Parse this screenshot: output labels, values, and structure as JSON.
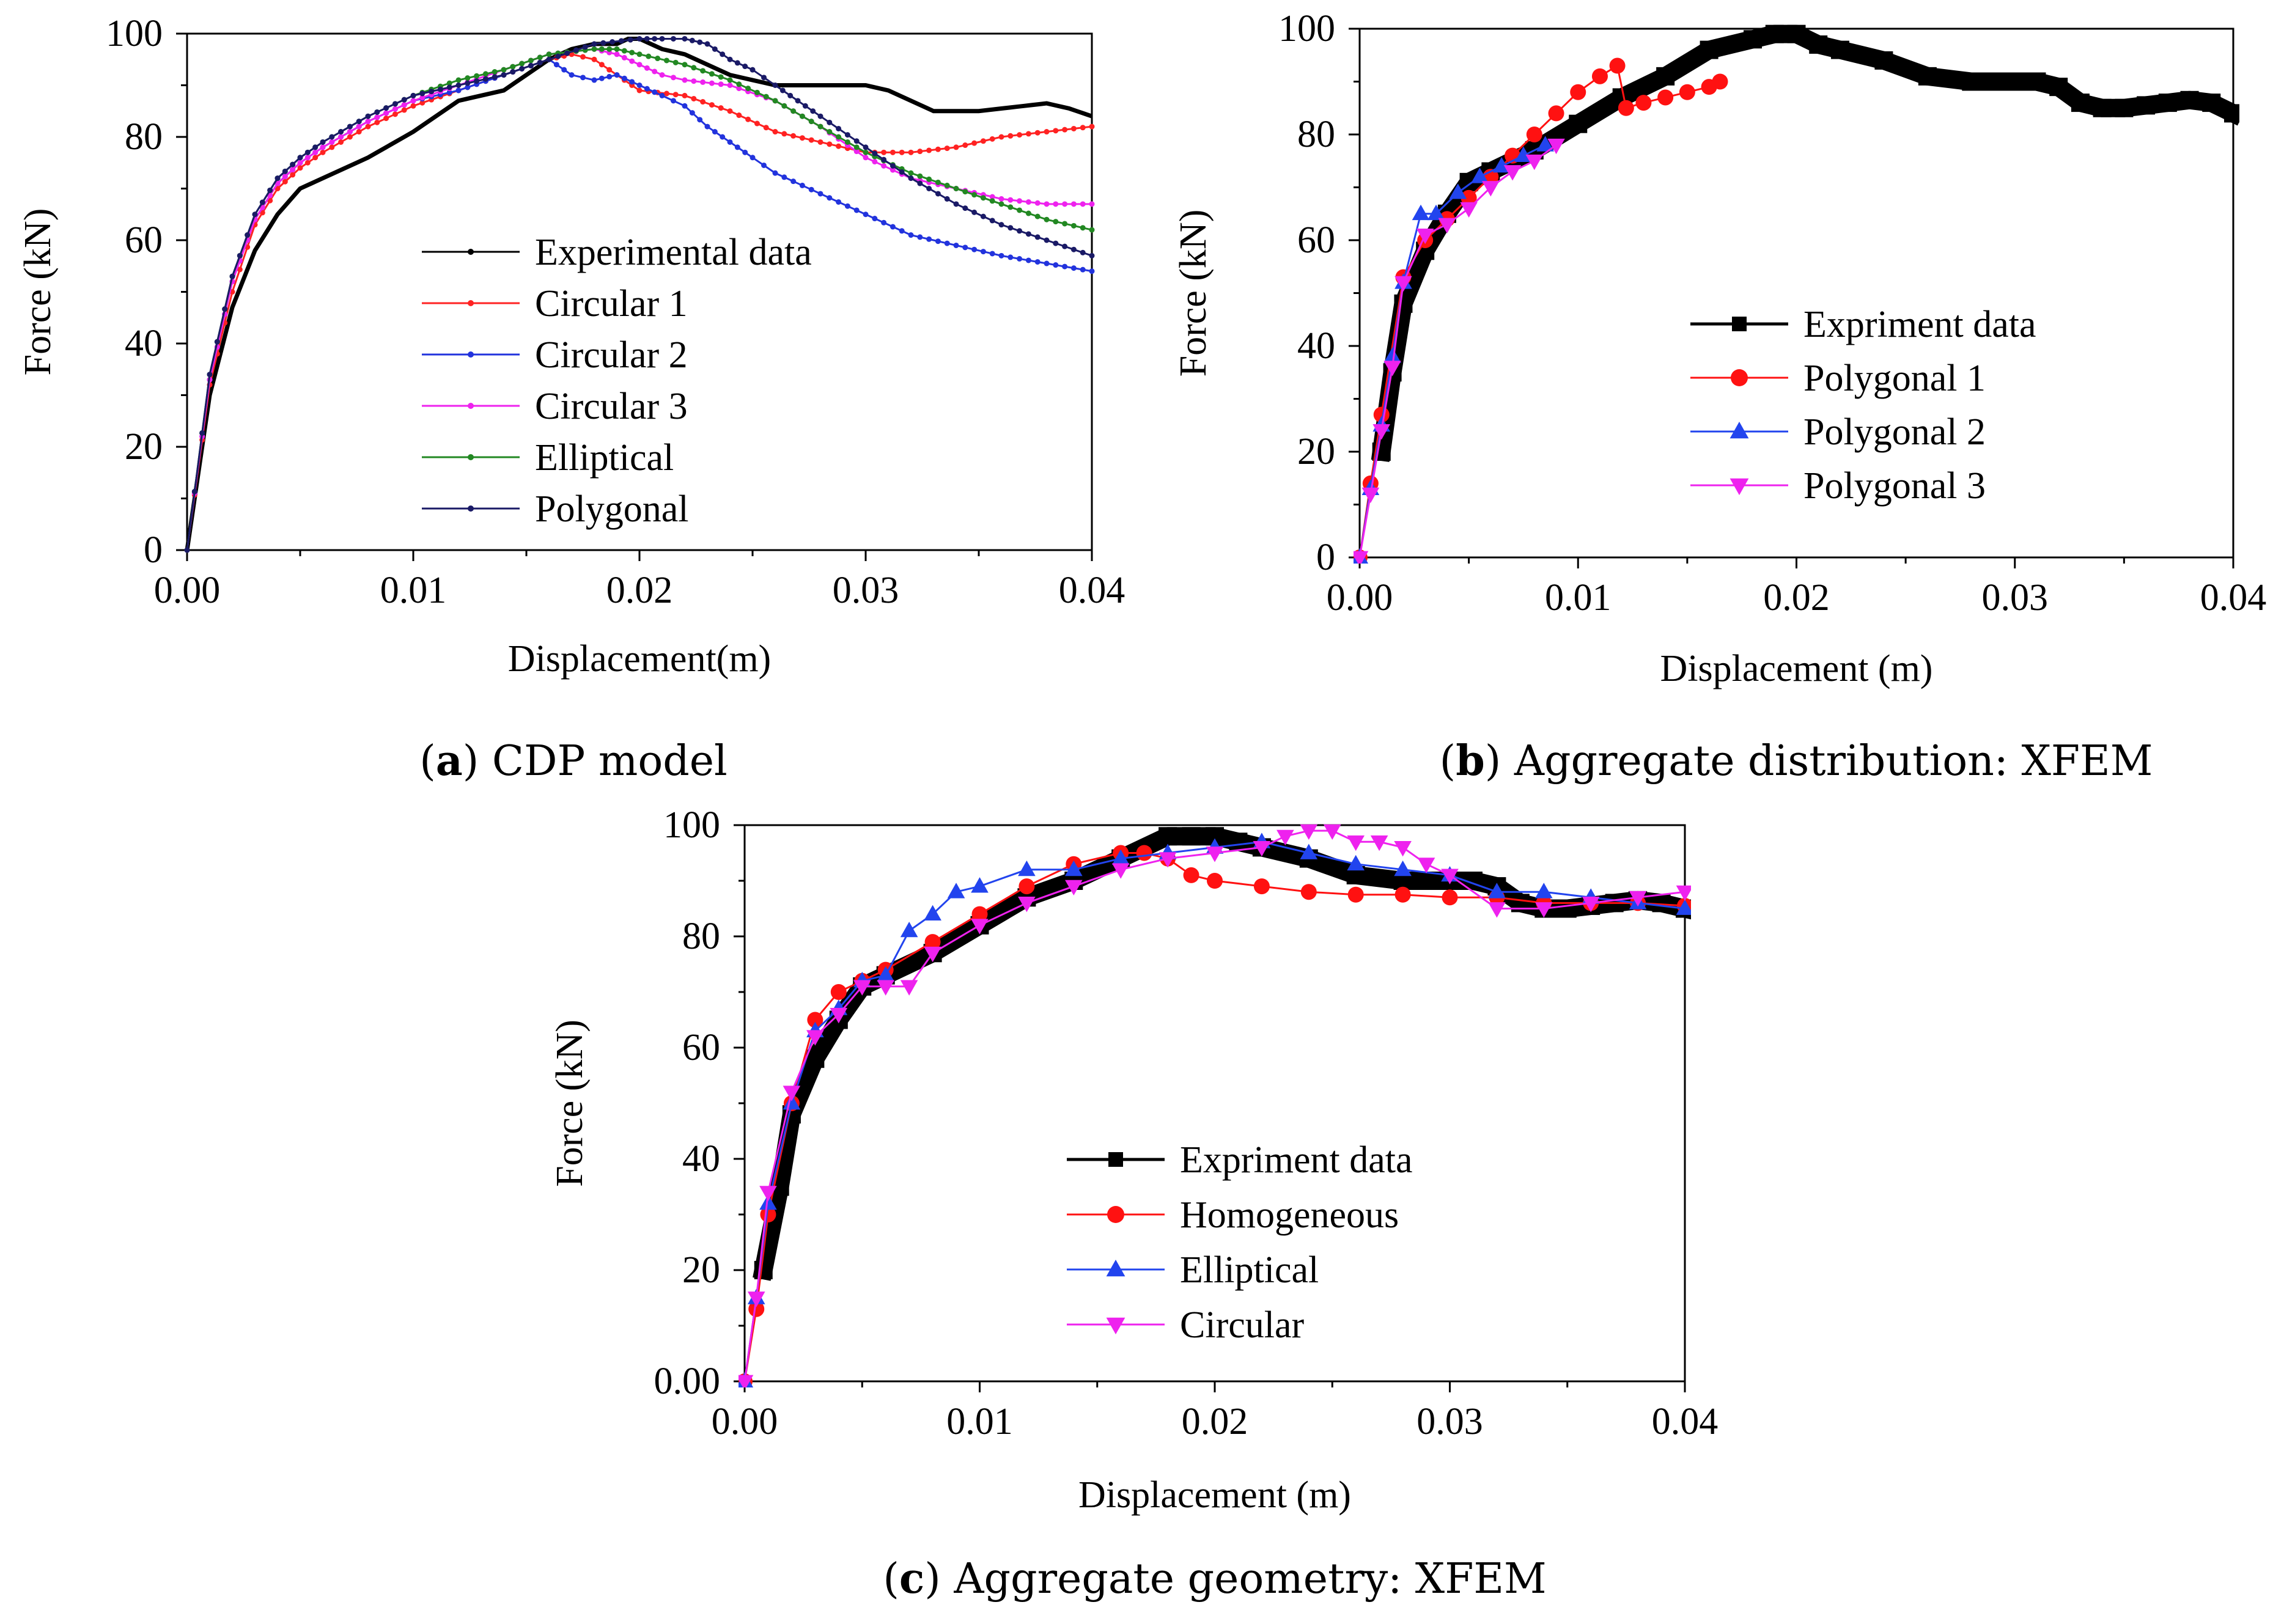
{
  "chart_data": [
    {
      "type": "line",
      "caption": {
        "letter": "a",
        "text": "CDP model"
      },
      "xlabel": "Displacement(m)",
      "ylabel": "Force (kN)",
      "xlim": [
        0,
        0.04
      ],
      "ylim": [
        0,
        100
      ],
      "xticks": [
        "0.00",
        "0.01",
        "0.02",
        "0.03",
        "0.04"
      ],
      "yticks": [
        "0",
        "20",
        "40",
        "60",
        "80",
        "100"
      ],
      "legend_position": "center",
      "series": [
        {
          "name": "Experimental data",
          "color": "#000000",
          "marker": "dot",
          "x": [
            0,
            0.001,
            0.002,
            0.003,
            0.004,
            0.005,
            0.006,
            0.008,
            0.01,
            0.012,
            0.014,
            0.015,
            0.016,
            0.017,
            0.018,
            0.019,
            0.0195,
            0.02,
            0.021,
            0.022,
            0.023,
            0.024,
            0.025,
            0.026,
            0.027,
            0.028,
            0.029,
            0.03,
            0.031,
            0.032,
            0.033,
            0.034,
            0.035,
            0.036,
            0.037,
            0.038,
            0.039,
            0.04
          ],
          "y": [
            0,
            30,
            47,
            58,
            65,
            70,
            72,
            76,
            81,
            87,
            89,
            92,
            95,
            97,
            98,
            98,
            99,
            99,
            97,
            96,
            94,
            92,
            91,
            90,
            90,
            90,
            90,
            90,
            89,
            87,
            85,
            85,
            85,
            85.5,
            86,
            86.5,
            85.5,
            84
          ]
        },
        {
          "name": "Circular 1",
          "color": "#ff2222",
          "marker": "dot",
          "x": [
            0,
            0.001,
            0.002,
            0.003,
            0.004,
            0.005,
            0.006,
            0.008,
            0.01,
            0.012,
            0.014,
            0.016,
            0.017,
            0.018,
            0.019,
            0.02,
            0.022,
            0.024,
            0.026,
            0.028,
            0.03,
            0.032,
            0.034,
            0.036,
            0.038,
            0.04
          ],
          "y": [
            0,
            32,
            50,
            63,
            70,
            74,
            77,
            82,
            86,
            89,
            92,
            95,
            96,
            95,
            92,
            89,
            88,
            85,
            81,
            79,
            77,
            77,
            78,
            80,
            81,
            82
          ]
        },
        {
          "name": "Circular 2",
          "color": "#2233dd",
          "marker": "dot",
          "x": [
            0,
            0.001,
            0.002,
            0.003,
            0.004,
            0.005,
            0.006,
            0.008,
            0.01,
            0.012,
            0.014,
            0.016,
            0.017,
            0.018,
            0.019,
            0.02,
            0.021,
            0.022,
            0.023,
            0.024,
            0.025,
            0.026,
            0.028,
            0.03,
            0.032,
            0.034,
            0.036,
            0.038,
            0.04
          ],
          "y": [
            0,
            33,
            52,
            64,
            71,
            75,
            78,
            83,
            87,
            89,
            92,
            95,
            92,
            91,
            92,
            90,
            88,
            86,
            82,
            79,
            76,
            73,
            69,
            65,
            61,
            59,
            57,
            55.5,
            54
          ]
        },
        {
          "name": "Circular 3",
          "color": "#ee22ee",
          "marker": "dot",
          "x": [
            0,
            0.001,
            0.002,
            0.003,
            0.004,
            0.005,
            0.006,
            0.008,
            0.01,
            0.012,
            0.014,
            0.016,
            0.018,
            0.019,
            0.02,
            0.021,
            0.022,
            0.024,
            0.026,
            0.028,
            0.03,
            0.032,
            0.034,
            0.036,
            0.038,
            0.04
          ],
          "y": [
            0,
            33,
            52,
            64,
            71,
            75,
            78,
            83,
            87,
            90,
            93,
            96,
            97,
            96,
            94,
            92,
            91,
            90,
            87,
            82,
            76,
            72,
            70,
            68,
            67,
            67
          ]
        },
        {
          "name": "Elliptical",
          "color": "#228822",
          "marker": "dot",
          "x": [
            0,
            0.001,
            0.002,
            0.003,
            0.004,
            0.005,
            0.006,
            0.008,
            0.01,
            0.012,
            0.014,
            0.016,
            0.018,
            0.019,
            0.02,
            0.022,
            0.024,
            0.026,
            0.028,
            0.03,
            0.032,
            0.034,
            0.036,
            0.038,
            0.04
          ],
          "y": [
            0,
            34,
            53,
            65,
            72,
            76,
            79,
            84,
            88,
            91,
            93,
            96,
            97,
            97,
            96,
            94,
            91,
            87,
            82,
            77,
            73,
            70,
            67,
            64,
            62
          ]
        },
        {
          "name": "Polygonal",
          "color": "#1a1a66",
          "marker": "dot",
          "x": [
            0,
            0.001,
            0.002,
            0.003,
            0.004,
            0.005,
            0.006,
            0.008,
            0.01,
            0.012,
            0.014,
            0.016,
            0.018,
            0.02,
            0.021,
            0.022,
            0.023,
            0.024,
            0.025,
            0.026,
            0.027,
            0.028,
            0.03,
            0.032,
            0.034,
            0.036,
            0.038,
            0.04
          ],
          "y": [
            0,
            34,
            53,
            65,
            72,
            76,
            79,
            84,
            88,
            90,
            92,
            95,
            98,
            99,
            99,
            99,
            98,
            95,
            93,
            90,
            87,
            84,
            78,
            72,
            67,
            63,
            60,
            57
          ]
        }
      ]
    },
    {
      "type": "line",
      "caption": {
        "letter": "b",
        "text": "Aggregate distribution: XFEM"
      },
      "xlabel": "Displacement (m)",
      "ylabel": "Force (kN)",
      "xlim": [
        0,
        0.04
      ],
      "ylim": [
        0,
        100
      ],
      "xticks": [
        "0.00",
        "0.01",
        "0.02",
        "0.03",
        "0.04"
      ],
      "yticks": [
        "0",
        "20",
        "40",
        "60",
        "80",
        "100"
      ],
      "legend_position": "center-right",
      "series": [
        {
          "name": "Expriment data",
          "color": "#000000",
          "marker": "square",
          "thick": true,
          "x": [
            0.001,
            0.0015,
            0.002,
            0.003,
            0.004,
            0.005,
            0.006,
            0.008,
            0.01,
            0.012,
            0.014,
            0.016,
            0.018,
            0.019,
            0.02,
            0.021,
            0.022,
            0.024,
            0.026,
            0.028,
            0.03,
            0.031,
            0.032,
            0.033,
            0.034,
            0.035,
            0.036,
            0.037,
            0.038,
            0.039,
            0.04
          ],
          "y": [
            20,
            35,
            48,
            58,
            65,
            71,
            73,
            77,
            82,
            87,
            91,
            96,
            98,
            99,
            99,
            97,
            96,
            94,
            91,
            90,
            90,
            90,
            89,
            86,
            85,
            85,
            85.5,
            86,
            86.5,
            86,
            84
          ]
        },
        {
          "name": "Polygonal 1",
          "color": "#ff1111",
          "marker": "circle",
          "x": [
            0,
            0.0005,
            0.001,
            0.002,
            0.003,
            0.004,
            0.005,
            0.006,
            0.007,
            0.008,
            0.009,
            0.01,
            0.011,
            0.0118,
            0.0122,
            0.013,
            0.014,
            0.015,
            0.016,
            0.0165
          ],
          "y": [
            0,
            14,
            27,
            53,
            60,
            64,
            68,
            72,
            76,
            80,
            84,
            88,
            91,
            93,
            85,
            86,
            87,
            88,
            89,
            90
          ]
        },
        {
          "name": "Polygonal 2",
          "color": "#2244ee",
          "marker": "triangle-up",
          "x": [
            0,
            0.0005,
            0.001,
            0.0015,
            0.002,
            0.0028,
            0.0035,
            0.0045,
            0.0055,
            0.0065,
            0.0075,
            0.0085
          ],
          "y": [
            0,
            13,
            25,
            38,
            52,
            65,
            65,
            69,
            72,
            74,
            76,
            78
          ]
        },
        {
          "name": "Polygonal 3",
          "color": "#ee22ee",
          "marker": "triangle-down",
          "x": [
            0,
            0.0005,
            0.001,
            0.0015,
            0.002,
            0.003,
            0.004,
            0.005,
            0.006,
            0.007,
            0.008,
            0.009
          ],
          "y": [
            0,
            12,
            24,
            36,
            52,
            61,
            63,
            66,
            70,
            73,
            75,
            78
          ]
        }
      ]
    },
    {
      "type": "line",
      "caption": {
        "letter": "c",
        "text": "Aggregate geometry: XFEM"
      },
      "xlabel": "Displacement (m)",
      "ylabel": "Force (kN)",
      "xlim": [
        0,
        0.04
      ],
      "ylim": [
        0,
        100
      ],
      "xticks": [
        "0.00",
        "0.01",
        "0.02",
        "0.03",
        "0.04"
      ],
      "yticks": [
        "0.00",
        "20",
        "40",
        "60",
        "80",
        "100"
      ],
      "legend_position": "center",
      "series": [
        {
          "name": "Expriment data",
          "color": "#000000",
          "marker": "square",
          "thick": true,
          "x": [
            0.0008,
            0.0015,
            0.002,
            0.003,
            0.004,
            0.005,
            0.006,
            0.008,
            0.01,
            0.012,
            0.014,
            0.016,
            0.018,
            0.019,
            0.02,
            0.021,
            0.022,
            0.024,
            0.026,
            0.028,
            0.03,
            0.031,
            0.032,
            0.033,
            0.034,
            0.035,
            0.036,
            0.037,
            0.038,
            0.039,
            0.04
          ],
          "y": [
            20,
            35,
            48,
            58,
            65,
            71,
            73,
            77,
            82,
            87,
            90,
            94,
            98,
            98,
            98,
            97,
            96,
            94,
            91,
            90,
            90,
            90,
            89,
            86,
            85,
            85,
            85.5,
            86,
            86.5,
            86,
            85
          ]
        },
        {
          "name": "Homogeneous",
          "color": "#ff1111",
          "marker": "circle",
          "x": [
            0,
            0.0005,
            0.001,
            0.002,
            0.003,
            0.004,
            0.005,
            0.006,
            0.008,
            0.01,
            0.012,
            0.014,
            0.016,
            0.017,
            0.018,
            0.019,
            0.02,
            0.022,
            0.024,
            0.026,
            0.028,
            0.03,
            0.032,
            0.034,
            0.036,
            0.038,
            0.04
          ],
          "y": [
            0,
            13,
            30,
            50,
            65,
            70,
            72,
            74,
            79,
            84,
            89,
            93,
            95,
            95,
            94,
            91,
            90,
            89,
            88,
            87.5,
            87.5,
            87,
            87,
            86,
            86,
            86,
            85.5
          ]
        },
        {
          "name": "Elliptical",
          "color": "#2244ee",
          "marker": "triangle-up",
          "x": [
            0,
            0.0005,
            0.001,
            0.002,
            0.003,
            0.004,
            0.005,
            0.006,
            0.007,
            0.008,
            0.009,
            0.01,
            0.012,
            0.014,
            0.016,
            0.018,
            0.02,
            0.022,
            0.024,
            0.026,
            0.028,
            0.03,
            0.032,
            0.034,
            0.036,
            0.038,
            0.04
          ],
          "y": [
            0,
            15,
            32,
            50,
            63,
            67,
            72,
            73,
            81,
            84,
            88,
            89,
            92,
            92,
            94,
            95,
            96,
            97,
            95,
            93,
            92,
            91,
            88,
            88,
            87,
            86,
            85
          ]
        },
        {
          "name": "Circular",
          "color": "#ee22ee",
          "marker": "triangle-down",
          "x": [
            0,
            0.0005,
            0.001,
            0.002,
            0.003,
            0.004,
            0.005,
            0.006,
            0.007,
            0.008,
            0.01,
            0.012,
            0.014,
            0.016,
            0.018,
            0.02,
            0.022,
            0.023,
            0.024,
            0.025,
            0.026,
            0.027,
            0.028,
            0.029,
            0.03,
            0.032,
            0.034,
            0.036,
            0.038,
            0.04
          ],
          "y": [
            0,
            15,
            34,
            52,
            62,
            66,
            71,
            71,
            71,
            77,
            82,
            86,
            89,
            92,
            94,
            95,
            96,
            98,
            99,
            99,
            97,
            97,
            96,
            93,
            91,
            85,
            85,
            86,
            87,
            88
          ]
        }
      ]
    }
  ]
}
